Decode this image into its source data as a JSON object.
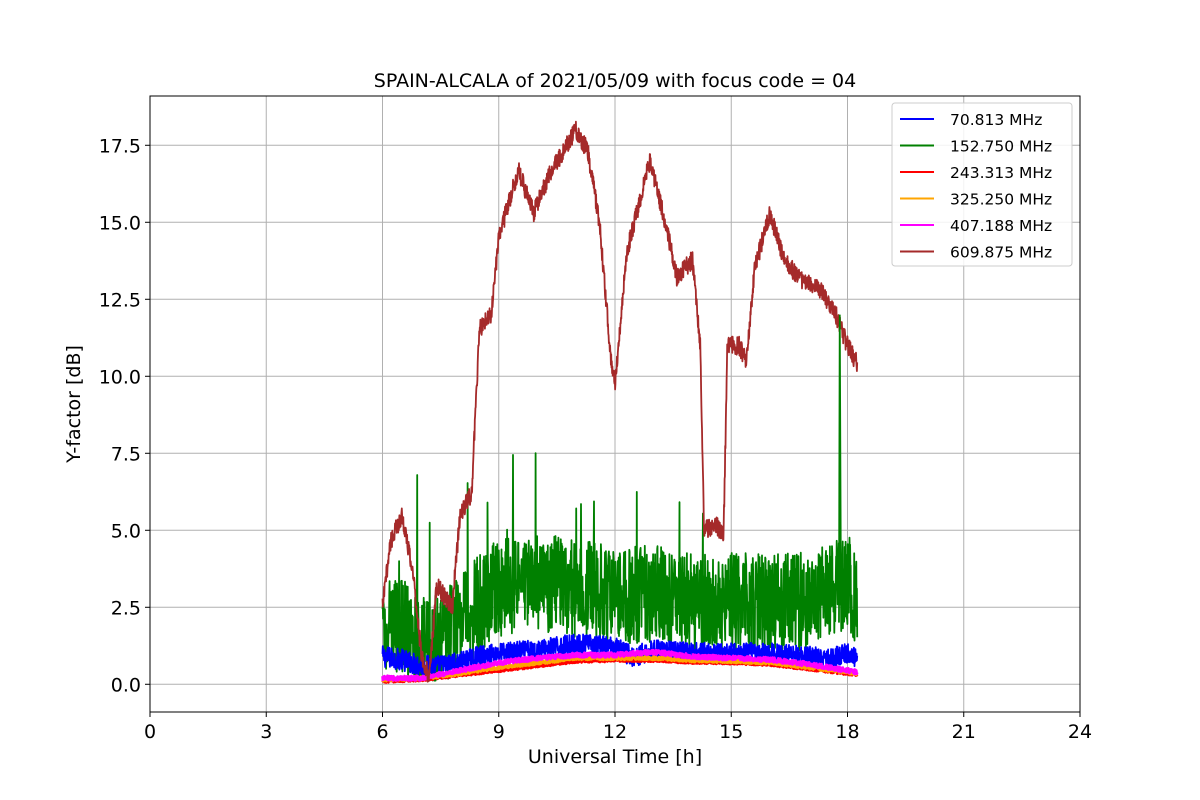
{
  "chart_data": {
    "type": "line",
    "title": "SPAIN-ALCALA of 2021/05/09 with focus code = 04",
    "xlabel": "Universal Time [h]",
    "ylabel": "Y-factor [dB]",
    "xlim": [
      0,
      24
    ],
    "ylim": [
      -0.9,
      19.1
    ],
    "xticks": [
      0,
      3,
      6,
      9,
      12,
      15,
      18,
      21,
      24
    ],
    "xtick_labels": [
      "0",
      "3",
      "6",
      "9",
      "12",
      "15",
      "18",
      "21",
      "24"
    ],
    "yticks": [
      0.0,
      2.5,
      5.0,
      7.5,
      10.0,
      12.5,
      15.0,
      17.5
    ],
    "ytick_labels": [
      "0.0",
      "2.5",
      "5.0",
      "7.5",
      "10.0",
      "12.5",
      "15.0",
      "17.5"
    ],
    "grid": true,
    "legend_position": "top-right",
    "series": [
      {
        "name": " 70.813 MHz",
        "color": "#0000ff",
        "noise": 0.35,
        "points": [
          [
            6.0,
            0.9
          ],
          [
            6.5,
            0.8
          ],
          [
            7.0,
            0.6
          ],
          [
            7.5,
            0.6
          ],
          [
            8.0,
            0.7
          ],
          [
            8.5,
            0.9
          ],
          [
            9.0,
            1.0
          ],
          [
            10.0,
            1.1
          ],
          [
            11.0,
            1.3
          ],
          [
            12.0,
            1.2
          ],
          [
            12.5,
            0.9
          ],
          [
            13.0,
            1.1
          ],
          [
            14.0,
            1.0
          ],
          [
            15.0,
            1.0
          ],
          [
            16.0,
            1.0
          ],
          [
            17.0,
            0.9
          ],
          [
            17.5,
            0.8
          ],
          [
            18.0,
            1.0
          ],
          [
            18.25,
            0.9
          ]
        ]
      },
      {
        "name": "152.750 MHz",
        "color": "#008000",
        "noise": 1.6,
        "points": [
          [
            6.0,
            1.5
          ],
          [
            6.5,
            1.6
          ],
          [
            7.0,
            1.2
          ],
          [
            7.5,
            1.0
          ],
          [
            8.0,
            1.6
          ],
          [
            8.5,
            2.3
          ],
          [
            9.0,
            2.8
          ],
          [
            10.0,
            3.0
          ],
          [
            11.0,
            2.8
          ],
          [
            12.0,
            2.6
          ],
          [
            13.0,
            2.6
          ],
          [
            14.0,
            2.3
          ],
          [
            15.0,
            2.4
          ],
          [
            16.0,
            2.3
          ],
          [
            17.0,
            2.4
          ],
          [
            17.5,
            2.8
          ],
          [
            18.0,
            3.0
          ],
          [
            18.25,
            2.5
          ]
        ]
      },
      {
        "name": "243.313 MHz",
        "color": "#ff0000",
        "noise": 0.05,
        "points": [
          [
            6.0,
            0.1
          ],
          [
            7.0,
            0.15
          ],
          [
            8.0,
            0.3
          ],
          [
            9.0,
            0.45
          ],
          [
            10.0,
            0.6
          ],
          [
            11.0,
            0.75
          ],
          [
            12.0,
            0.78
          ],
          [
            13.0,
            0.78
          ],
          [
            14.0,
            0.72
          ],
          [
            15.0,
            0.7
          ],
          [
            16.0,
            0.65
          ],
          [
            17.0,
            0.5
          ],
          [
            18.0,
            0.35
          ],
          [
            18.25,
            0.3
          ]
        ]
      },
      {
        "name": "325.250 MHz",
        "color": "#ffa500",
        "noise": 0.06,
        "points": [
          [
            6.0,
            0.15
          ],
          [
            7.0,
            0.2
          ],
          [
            8.0,
            0.35
          ],
          [
            9.0,
            0.55
          ],
          [
            10.0,
            0.7
          ],
          [
            11.0,
            0.85
          ],
          [
            12.0,
            0.85
          ],
          [
            13.0,
            0.85
          ],
          [
            14.0,
            0.78
          ],
          [
            15.0,
            0.75
          ],
          [
            16.0,
            0.7
          ],
          [
            17.0,
            0.55
          ],
          [
            18.0,
            0.4
          ],
          [
            18.25,
            0.35
          ]
        ]
      },
      {
        "name": "407.188 MHz",
        "color": "#ff00ff",
        "noise": 0.08,
        "points": [
          [
            6.0,
            0.2
          ],
          [
            7.0,
            0.2
          ],
          [
            8.0,
            0.45
          ],
          [
            9.0,
            0.7
          ],
          [
            10.0,
            0.85
          ],
          [
            11.0,
            0.95
          ],
          [
            12.0,
            0.95
          ],
          [
            13.0,
            1.05
          ],
          [
            14.0,
            0.9
          ],
          [
            15.0,
            0.85
          ],
          [
            16.0,
            0.8
          ],
          [
            17.0,
            0.65
          ],
          [
            18.0,
            0.45
          ],
          [
            18.25,
            0.4
          ]
        ]
      },
      {
        "name": "609.875 MHz",
        "color": "#a52a2a",
        "noise": 0.3,
        "points": [
          [
            6.0,
            2.5
          ],
          [
            6.2,
            4.6
          ],
          [
            6.5,
            5.5
          ],
          [
            6.8,
            3.5
          ],
          [
            7.0,
            1.0
          ],
          [
            7.2,
            0.2
          ],
          [
            7.4,
            3.2
          ],
          [
            7.8,
            2.5
          ],
          [
            8.0,
            5.5
          ],
          [
            8.3,
            6.2
          ],
          [
            8.5,
            11.5
          ],
          [
            8.8,
            12.0
          ],
          [
            9.0,
            14.5
          ],
          [
            9.5,
            16.7
          ],
          [
            9.9,
            15.3
          ],
          [
            10.3,
            16.5
          ],
          [
            10.7,
            17.4
          ],
          [
            11.0,
            18.0
          ],
          [
            11.3,
            17.3
          ],
          [
            11.6,
            15.0
          ],
          [
            11.9,
            10.5
          ],
          [
            12.0,
            9.8
          ],
          [
            12.3,
            14.0
          ],
          [
            12.6,
            15.5
          ],
          [
            12.9,
            17.0
          ],
          [
            13.3,
            15.0
          ],
          [
            13.6,
            13.2
          ],
          [
            14.0,
            13.8
          ],
          [
            14.2,
            11.0
          ],
          [
            14.3,
            5.0
          ],
          [
            14.6,
            5.2
          ],
          [
            14.8,
            4.8
          ],
          [
            14.9,
            11.0
          ],
          [
            15.2,
            11.0
          ],
          [
            15.4,
            10.5
          ],
          [
            15.6,
            13.5
          ],
          [
            16.0,
            15.3
          ],
          [
            16.3,
            14.0
          ],
          [
            16.7,
            13.2
          ],
          [
            17.3,
            12.8
          ],
          [
            17.7,
            12.0
          ],
          [
            18.0,
            11.0
          ],
          [
            18.25,
            10.4
          ]
        ]
      }
    ]
  }
}
